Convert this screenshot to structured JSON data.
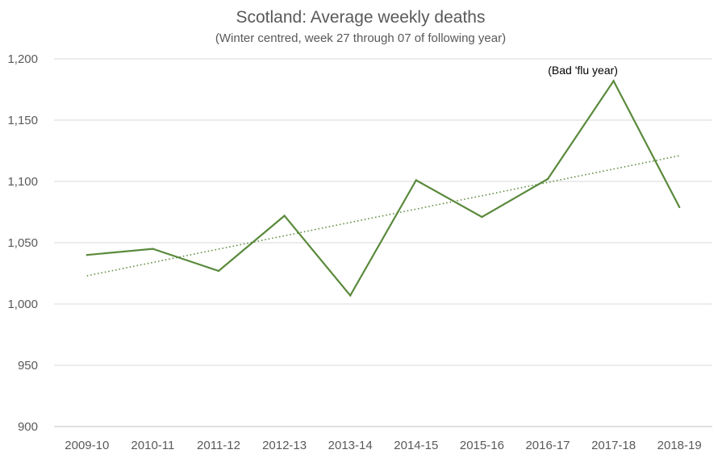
{
  "chart_data": {
    "type": "line",
    "title": "Scotland: Average weekly deaths",
    "subtitle": "(Winter centred, week 27 through 07 of following year)",
    "categories": [
      "2009-10",
      "2010-11",
      "2011-12",
      "2012-13",
      "2013-14",
      "2014-15",
      "2015-16",
      "2016-17",
      "2017-18",
      "2018-19"
    ],
    "series": [
      {
        "name": "Average weekly deaths",
        "values": [
          1040,
          1045,
          1027,
          1072,
          1007,
          1101,
          1071,
          1102,
          1182,
          1079
        ]
      }
    ],
    "trendline": {
      "type": "linear",
      "style": "dotted",
      "start": 1023,
      "end": 1121
    },
    "ylim": [
      900,
      1200
    ],
    "yticks": [
      900,
      950,
      1000,
      1050,
      1100,
      1150,
      1200
    ],
    "ytick_labels": [
      "900",
      "950",
      "1,000",
      "1,050",
      "1,100",
      "1,150",
      "1,200"
    ],
    "grid": true,
    "annotations": [
      {
        "text": "(Bad 'flu year)",
        "category": "2017-18"
      }
    ],
    "colors": {
      "line": "#5a8a3c",
      "trend": "#5a8a3c",
      "grid": "#d9d9d9",
      "text": "#595959"
    }
  }
}
